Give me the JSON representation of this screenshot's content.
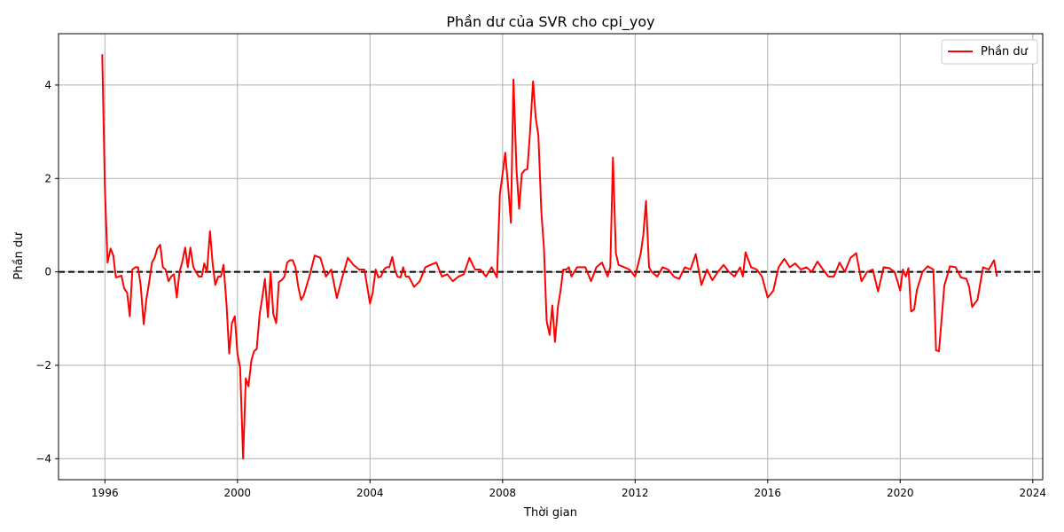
{
  "chart_data": {
    "type": "line",
    "title": "Phần dư của SVR cho cpi_yoy",
    "xlabel": "Thời gian",
    "ylabel": "Phần dư",
    "xlim": [
      1994.6,
      2024.3
    ],
    "ylim": [
      -4.45,
      5.1
    ],
    "xticks": [
      1996,
      2000,
      2004,
      2008,
      2012,
      2016,
      2020,
      2024
    ],
    "yticks": [
      -4,
      -2,
      0,
      2,
      4
    ],
    "grid": true,
    "legend_position": "top-right",
    "reference_line": {
      "y": 0,
      "style": "dashed",
      "color": "#000000"
    },
    "series": [
      {
        "name": "Phần dư",
        "color": "#ff0000",
        "x": [
          1995.92,
          1996.0,
          1996.08,
          1996.17,
          1996.25,
          1996.33,
          1996.42,
          1996.5,
          1996.58,
          1996.67,
          1996.75,
          1996.83,
          1996.92,
          1997.0,
          1997.08,
          1997.17,
          1997.25,
          1997.33,
          1997.42,
          1997.5,
          1997.58,
          1997.67,
          1997.75,
          1997.83,
          1997.92,
          1998.0,
          1998.08,
          1998.17,
          1998.25,
          1998.33,
          1998.42,
          1998.5,
          1998.58,
          1998.67,
          1998.75,
          1998.83,
          1998.92,
          1999.0,
          1999.08,
          1999.17,
          1999.25,
          1999.33,
          1999.42,
          1999.5,
          1999.58,
          1999.67,
          1999.75,
          1999.83,
          1999.92,
          2000.0,
          2000.08,
          2000.17,
          2000.25,
          2000.33,
          2000.42,
          2000.5,
          2000.58,
          2000.67,
          2000.75,
          2000.83,
          2000.92,
          2001.0,
          2001.08,
          2001.17,
          2001.25,
          2001.33,
          2001.42,
          2001.5,
          2001.58,
          2001.67,
          2001.75,
          2001.83,
          2001.92,
          2002.0,
          2002.17,
          2002.33,
          2002.5,
          2002.67,
          2002.83,
          2003.0,
          2003.17,
          2003.33,
          2003.5,
          2003.67,
          2003.83,
          2004.0,
          2004.08,
          2004.17,
          2004.25,
          2004.33,
          2004.42,
          2004.5,
          2004.58,
          2004.67,
          2004.75,
          2004.83,
          2004.92,
          2005.0,
          2005.08,
          2005.17,
          2005.33,
          2005.5,
          2005.67,
          2005.83,
          2006.0,
          2006.17,
          2006.33,
          2006.5,
          2006.67,
          2006.83,
          2007.0,
          2007.17,
          2007.33,
          2007.5,
          2007.67,
          2007.83,
          2007.92,
          2008.0,
          2008.08,
          2008.17,
          2008.25,
          2008.33,
          2008.42,
          2008.5,
          2008.58,
          2008.67,
          2008.75,
          2008.83,
          2008.92,
          2009.0,
          2009.08,
          2009.17,
          2009.25,
          2009.33,
          2009.42,
          2009.5,
          2009.58,
          2009.67,
          2009.75,
          2009.83,
          2009.92,
          2010.0,
          2010.08,
          2010.25,
          2010.5,
          2010.67,
          2010.83,
          2011.0,
          2011.17,
          2011.25,
          2011.33,
          2011.42,
          2011.5,
          2011.67,
          2011.83,
          2012.0,
          2012.17,
          2012.25,
          2012.33,
          2012.42,
          2012.5,
          2012.67,
          2012.83,
          2013.0,
          2013.17,
          2013.33,
          2013.5,
          2013.67,
          2013.83,
          2014.0,
          2014.17,
          2014.33,
          2014.5,
          2014.67,
          2014.83,
          2015.0,
          2015.17,
          2015.25,
          2015.33,
          2015.5,
          2015.67,
          2015.83,
          2016.0,
          2016.17,
          2016.33,
          2016.5,
          2016.67,
          2016.83,
          2017.0,
          2017.17,
          2017.33,
          2017.5,
          2017.67,
          2017.83,
          2018.0,
          2018.17,
          2018.33,
          2018.5,
          2018.67,
          2018.83,
          2019.0,
          2019.17,
          2019.33,
          2019.5,
          2019.67,
          2019.83,
          2020.0,
          2020.08,
          2020.17,
          2020.25,
          2020.33,
          2020.42,
          2020.5,
          2020.67,
          2020.83,
          2021.0,
          2021.08,
          2021.17,
          2021.25,
          2021.33,
          2021.5,
          2021.67,
          2021.83,
          2022.0,
          2022.08,
          2022.17,
          2022.33,
          2022.5,
          2022.67,
          2022.83,
          2022.92
        ],
        "y": [
          4.66,
          1.8,
          0.2,
          0.5,
          0.36,
          -0.12,
          -0.1,
          -0.08,
          -0.35,
          -0.45,
          -0.95,
          0.05,
          0.1,
          0.1,
          -0.3,
          -1.12,
          -0.6,
          -0.25,
          0.2,
          0.3,
          0.5,
          0.58,
          0.1,
          0.05,
          -0.2,
          -0.1,
          -0.05,
          -0.55,
          0.0,
          0.2,
          0.52,
          0.1,
          0.52,
          0.1,
          0.0,
          -0.1,
          -0.1,
          0.18,
          0.0,
          0.87,
          0.18,
          -0.28,
          -0.1,
          -0.1,
          0.15,
          -0.7,
          -1.75,
          -1.1,
          -0.95,
          -1.75,
          -2.05,
          -4.0,
          -2.28,
          -2.45,
          -1.9,
          -1.7,
          -1.65,
          -0.9,
          -0.55,
          -0.15,
          -0.97,
          0.0,
          -0.9,
          -1.1,
          -0.22,
          -0.18,
          -0.1,
          0.2,
          0.25,
          0.25,
          0.1,
          -0.3,
          -0.6,
          -0.5,
          -0.1,
          0.35,
          0.3,
          -0.1,
          0.05,
          -0.56,
          -0.1,
          0.3,
          0.15,
          0.05,
          0.05,
          -0.68,
          -0.45,
          0.05,
          -0.12,
          -0.1,
          0.05,
          0.1,
          0.1,
          0.32,
          0.05,
          -0.1,
          -0.12,
          0.1,
          -0.1,
          -0.1,
          -0.32,
          -0.2,
          0.1,
          0.15,
          0.2,
          -0.1,
          -0.05,
          -0.2,
          -0.1,
          -0.05,
          0.3,
          0.05,
          0.05,
          -0.1,
          0.1,
          -0.12,
          1.67,
          2.1,
          2.55,
          1.8,
          1.05,
          4.12,
          2.2,
          1.35,
          2.1,
          2.18,
          2.2,
          3.0,
          4.08,
          3.3,
          2.92,
          1.3,
          0.5,
          -1.05,
          -1.35,
          -0.72,
          -1.5,
          -0.75,
          -0.4,
          0.05,
          0.05,
          0.1,
          -0.1,
          0.1,
          0.1,
          -0.2,
          0.1,
          0.2,
          -0.1,
          0.1,
          2.45,
          0.4,
          0.15,
          0.1,
          0.05,
          -0.1,
          0.4,
          0.8,
          1.52,
          0.1,
          0.0,
          -0.1,
          0.1,
          0.05,
          -0.1,
          -0.15,
          0.1,
          0.05,
          0.38,
          -0.28,
          0.05,
          -0.18,
          0.0,
          0.15,
          0.0,
          -0.1,
          0.1,
          -0.1,
          0.42,
          0.1,
          0.05,
          -0.1,
          -0.55,
          -0.4,
          0.1,
          0.28,
          0.1,
          0.18,
          0.05,
          0.1,
          0.0,
          0.22,
          0.05,
          -0.1,
          -0.1,
          0.2,
          0.0,
          0.3,
          0.4,
          -0.2,
          0.0,
          0.05,
          -0.42,
          0.1,
          0.08,
          0.0,
          -0.4,
          0.05,
          -0.1,
          0.08,
          -0.85,
          -0.8,
          -0.4,
          0.0,
          0.12,
          0.05,
          -1.68,
          -1.7,
          -1.0,
          -0.3,
          0.12,
          0.1,
          -0.12,
          -0.15,
          -0.32,
          -0.75,
          -0.6,
          0.1,
          0.05,
          0.25,
          -0.1
        ]
      }
    ]
  }
}
